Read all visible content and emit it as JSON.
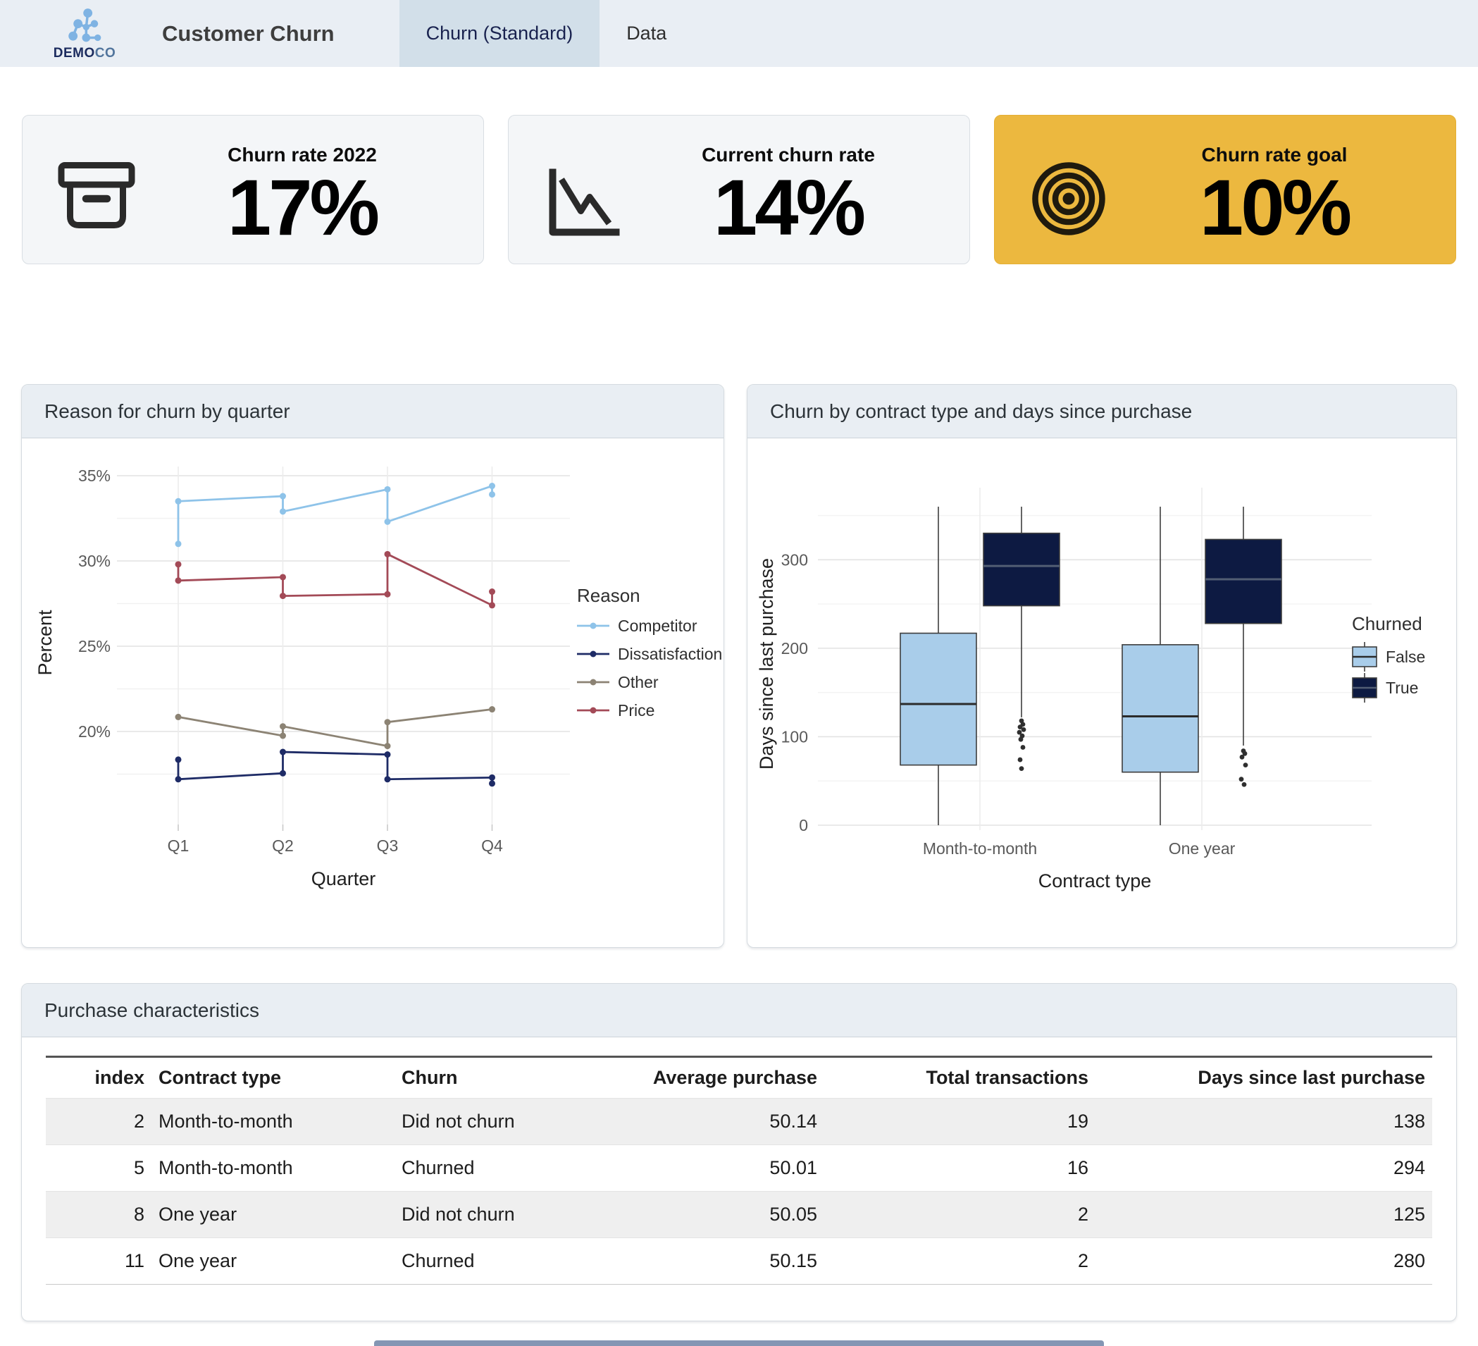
{
  "header": {
    "logo_text_bold": "DEMO",
    "logo_text_light": "CO",
    "title": "Customer Churn",
    "tabs": [
      {
        "label": "Churn (Standard)",
        "active": true
      },
      {
        "label": "Data",
        "active": false
      }
    ]
  },
  "kpis": [
    {
      "label": "Churn rate 2022",
      "value": "17%",
      "icon": "archive-box-icon",
      "variant": "default"
    },
    {
      "label": "Current churn rate",
      "value": "14%",
      "icon": "declining-line-chart-icon",
      "variant": "default"
    },
    {
      "label": "Churn rate goal",
      "value": "10%",
      "icon": "target-icon",
      "variant": "highlight",
      "highlight_color": "#ecb83f"
    }
  ],
  "panels": {
    "reason_chart_title": "Reason for churn by quarter",
    "box_chart_title": "Churn by contract type and days since purchase",
    "table_title": "Purchase characteristics"
  },
  "chart_data": [
    {
      "type": "line",
      "title": "Reason for churn by quarter",
      "xlabel": "Quarter",
      "ylabel": "Percent",
      "x_ticks": [
        "Q1",
        "Q2",
        "Q3",
        "Q4"
      ],
      "y_tick_values": [
        20,
        25,
        30,
        35
      ],
      "y_tick_labels": [
        "20%",
        "25%",
        "30%",
        "35%"
      ],
      "y_minor_gridlines": [
        17.5,
        22.5,
        27.5,
        32.5
      ],
      "ylim": [
        16.5,
        35.6
      ],
      "legend_title": "Reason",
      "legend_position": "right",
      "grid": true,
      "series": [
        {
          "name": "Competitor",
          "color": "#8ec3e9",
          "points": [
            [
              1,
              31.0
            ],
            [
              1,
              33.5
            ],
            [
              2,
              33.8
            ],
            [
              2,
              32.9
            ],
            [
              3,
              34.2
            ],
            [
              3,
              32.3
            ],
            [
              4,
              34.4
            ],
            [
              4,
              33.9
            ]
          ]
        },
        {
          "name": "Dissatisfaction",
          "color": "#1e2b66",
          "points": [
            [
              1,
              18.35
            ],
            [
              1,
              17.2
            ],
            [
              2,
              17.55
            ],
            [
              2,
              18.8
            ],
            [
              3,
              18.65
            ],
            [
              3,
              17.2
            ],
            [
              4,
              17.3
            ],
            [
              4,
              16.95
            ]
          ]
        },
        {
          "name": "Other",
          "color": "#8c8374",
          "points": [
            [
              1,
              20.85
            ],
            [
              2,
              19.75
            ],
            [
              2,
              20.3
            ],
            [
              3,
              19.15
            ],
            [
              3,
              20.55
            ],
            [
              4,
              21.3
            ]
          ]
        },
        {
          "name": "Price",
          "color": "#a34a57",
          "points": [
            [
              1,
              29.8
            ],
            [
              1,
              28.85
            ],
            [
              2,
              29.05
            ],
            [
              2,
              27.95
            ],
            [
              3,
              28.05
            ],
            [
              3,
              30.4
            ],
            [
              4,
              27.4
            ],
            [
              4,
              28.2
            ]
          ]
        }
      ]
    },
    {
      "type": "boxplot",
      "title": "Churn by contract type and days since purchase",
      "xlabel": "Contract type",
      "ylabel": "Days since last purchase",
      "categories": [
        "Month-to-month",
        "One year"
      ],
      "y_tick_values": [
        0,
        100,
        200,
        300
      ],
      "y_minor_gridlines": [
        50,
        150,
        250,
        350
      ],
      "ylim": [
        -8,
        375
      ],
      "legend_title": "Churned",
      "legend_position": "right",
      "grid": true,
      "groups": [
        {
          "name": "False",
          "color": "#a9cdea",
          "boxes": [
            {
              "category": "Month-to-month",
              "whisker_low": 0,
              "q1": 68,
              "median": 137,
              "q3": 217,
              "whisker_high": 360,
              "outliers": []
            },
            {
              "category": "One year",
              "whisker_low": 0,
              "q1": 60,
              "median": 123,
              "q3": 204,
              "whisker_high": 360,
              "outliers": []
            }
          ]
        },
        {
          "name": "True",
          "color": "#0d1a42",
          "boxes": [
            {
              "category": "Month-to-month",
              "whisker_low": 122,
              "q1": 248,
              "median": 293,
              "q3": 330,
              "whisker_high": 360,
              "outliers": [
                118,
                114,
                111,
                108,
                105,
                101,
                97,
                88,
                74,
                64
              ]
            },
            {
              "category": "One year",
              "whisker_low": 90,
              "q1": 228,
              "median": 278,
              "q3": 323,
              "whisker_high": 360,
              "outliers": [
                84,
                81,
                77,
                68,
                52,
                46
              ]
            }
          ]
        }
      ]
    }
  ],
  "table": {
    "columns": [
      "index",
      "Contract type",
      "Churn",
      "Average purchase",
      "Total transactions",
      "Days since last purchase"
    ],
    "rows": [
      [
        "2",
        "Month-to-month",
        "Did not churn",
        "50.14",
        "19",
        "138"
      ],
      [
        "5",
        "Month-to-month",
        "Churned",
        "50.01",
        "16",
        "294"
      ],
      [
        "8",
        "One year",
        "Did not churn",
        "50.05",
        "2",
        "125"
      ],
      [
        "11",
        "One year",
        "Churned",
        "50.15",
        "2",
        "280"
      ]
    ]
  }
}
